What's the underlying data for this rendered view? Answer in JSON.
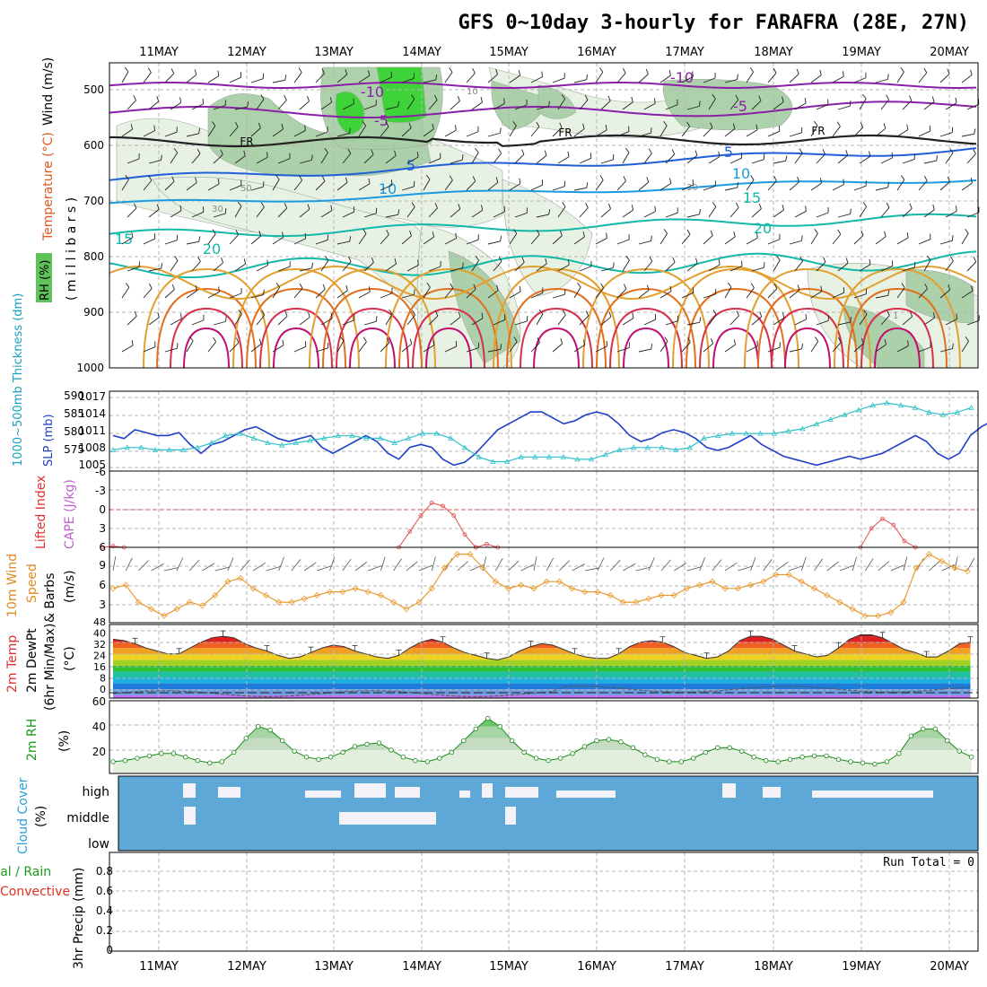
{
  "title": "GFS 0~10day 3-hourly for FARAFRA (28E, 27N)",
  "dates": [
    "11MAY",
    "12MAY",
    "13MAY",
    "14MAY",
    "15MAY",
    "16MAY",
    "17MAY",
    "18MAY",
    "19MAY",
    "20MAY"
  ],
  "colors": {
    "bg": "#ffffff",
    "grid": "#b5b5b5",
    "frame": "#000000",
    "rh_light": "#e6f2e3",
    "rh_mid": "#a9cfa6",
    "rh_dark": "#7ab078",
    "rh_bright": "#39d432",
    "temp_purple": "#8a1fa8",
    "temp_blue": "#1f5fd8",
    "temp_sky": "#1a9be0",
    "temp_teal": "#12b8a8",
    "temp_orange": "#e2a030",
    "temp_dorange": "#e07020",
    "temp_red": "#d8304a",
    "slp_line": "#1f3fc8",
    "thick_line": "#2fc0c8",
    "li_line": "#e05050",
    "cape_label": "#c060d0",
    "wind10_line": "#e89a30",
    "rh2m_line": "#1a8a1a",
    "cloud_bg": "#5ea8d8",
    "cloud_cover": "#f4f2f8",
    "precip_rain": "#1a9a1a",
    "precip_conv": "#e03020"
  },
  "panels": {
    "upper": {
      "ylabel_rh": "RH (%)",
      "ylabel_temp": "Temperature (°C)",
      "ylabel_wind": "Wind (m/s)",
      "ylabel_mb": "( m i l l i b a r s )",
      "yticks": [
        "500",
        "600",
        "700",
        "800",
        "900",
        "1000"
      ],
      "contour_labels": {
        "t_minus10": "-10",
        "t_minus5": "-5",
        "t_fr": "FR",
        "t_5": "5",
        "t_10": "10",
        "t_15": "15",
        "t_20": "20"
      },
      "rh_labels": [
        "30",
        "50",
        "30",
        "10",
        "1"
      ]
    },
    "slp": {
      "ylabel_left": "1000~500mb Thickness (dm)",
      "ylabel_right": "SLP (mb)",
      "yticks_left": [
        "590",
        "585",
        "580",
        "575"
      ],
      "yticks_right": [
        "1017",
        "1014",
        "1011",
        "1008",
        "1005"
      ]
    },
    "li": {
      "ylabel_left": "Lifted Index",
      "ylabel_right": "CAPE (J/kg)",
      "yticks": [
        "-6",
        "-3",
        "0",
        "3",
        "6"
      ]
    },
    "wind10": {
      "ylabel_1": "10m Wind",
      "ylabel_2": "Speed",
      "ylabel_3": "& Barbs",
      "ylabel_units": "(m/s)",
      "yticks": [
        "9",
        "6",
        "3"
      ]
    },
    "temp2m": {
      "ylabel_1": "2m Temp",
      "ylabel_2": "2m DewPt",
      "ylabel_3": "(6hr Min/Max)",
      "ylabel_units": "(°C)",
      "yticks": [
        "48",
        "40",
        "32",
        "24",
        "16",
        "8",
        "0"
      ]
    },
    "rh2m": {
      "ylabel_1": "2m RH",
      "ylabel_units": "(%)",
      "yticks": [
        "60",
        "40",
        "20"
      ]
    },
    "cloud": {
      "ylabel_1": "Cloud Cover",
      "ylabel_units": "(%)",
      "levels": [
        "high",
        "middle",
        "low"
      ]
    },
    "precip": {
      "ylabel_1": "Total / Rain",
      "ylabel_2": "Convective",
      "ylabel_3": "3hr Precip (mm)",
      "yticks": [
        "0.8",
        "0.6",
        "0.4",
        "0.2",
        "0"
      ],
      "run_total": "Run Total = 0"
    }
  },
  "chart_data": [
    {
      "type": "line",
      "title": "SLP (mb)",
      "x_start": "10MAY 12Z",
      "x_step_hours": 3,
      "ylim": [
        1004,
        1017.5
      ],
      "values": [
        1010,
        1009.5,
        1011,
        1010.5,
        1010,
        1010,
        1010.5,
        1008.5,
        1007,
        1008.5,
        1009,
        1010,
        1011,
        1011.5,
        1010.5,
        1009.5,
        1009,
        1009.5,
        1010,
        1008,
        1007,
        1008,
        1009,
        1010,
        1009,
        1007,
        1006,
        1008,
        1008.5,
        1008,
        1006,
        1005,
        1005.5,
        1007,
        1009,
        1011,
        1012,
        1013,
        1014,
        1014,
        1013,
        1012,
        1012.5,
        1013.5,
        1014,
        1013.5,
        1012,
        1010,
        1009,
        1009.5,
        1010.5,
        1011,
        1010.5,
        1009.5,
        1008,
        1007.5,
        1008,
        1009,
        1010,
        1008.5,
        1007.5,
        1006.5,
        1006,
        1005.5,
        1005,
        1005.5,
        1006,
        1006.5,
        1006,
        1006.5,
        1007,
        1008,
        1009,
        1010,
        1009,
        1007,
        1006,
        1007,
        1010,
        1011.5,
        1012.5,
        1013,
        1013.5,
        1012.5,
        1012,
        1012.5,
        1014,
        1014.5,
        1013.5,
        1012.5,
        1011.5,
        1012,
        1013,
        1014,
        1015,
        1015.5,
        1016,
        1014.5,
        1014,
        1015.5,
        1016.5,
        1016,
        1015,
        1014,
        1014,
        1015,
        1016,
        1016.5,
        1015.5,
        1014.5,
        1015,
        1016.5,
        1017
      ]
    },
    {
      "type": "line",
      "title": "1000~500mb Thickness (dm)",
      "x_start": "10MAY 12Z",
      "x_step_hours": 3,
      "ylim": [
        573,
        590
      ],
      "values": [
        577.5,
        578,
        578,
        577.5,
        577.5,
        577.5,
        578,
        579,
        580.5,
        581,
        580,
        579,
        578.5,
        579,
        579.5,
        580,
        580.5,
        580.5,
        580,
        580,
        579,
        580,
        581,
        581,
        580,
        578,
        576,
        575,
        575,
        576,
        576,
        576,
        576,
        575.5,
        575.5,
        576.5,
        577.5,
        578,
        578,
        578,
        577.5,
        578,
        580,
        580.5,
        581,
        581,
        581,
        581,
        581.5,
        582,
        583,
        584,
        585,
        586,
        587,
        587.5,
        587,
        586.5,
        585.5,
        585,
        585.5,
        586.5,
        587.5,
        586.5,
        585,
        584,
        583.5,
        583,
        582.5,
        582,
        581.5,
        581.5,
        581,
        580.5,
        579.5,
        578.5,
        578,
        578,
        578,
        578.5,
        579,
        579.5,
        579,
        578.5,
        578,
        577.5,
        577,
        577.5,
        577,
        576.5
      ]
    },
    {
      "type": "line",
      "title": "Lifted Index",
      "x_start": "10MAY 12Z",
      "x_step_hours": 3,
      "ylim": [
        6,
        -6
      ],
      "values": [
        5.8,
        6,
        6,
        6,
        6,
        6,
        6,
        6,
        6,
        6,
        6,
        6,
        6,
        6,
        6,
        6,
        6,
        6,
        6,
        6,
        6,
        6,
        6,
        6,
        6,
        6,
        6,
        3.5,
        1,
        -1,
        -0.5,
        1,
        4,
        6,
        5.5,
        6,
        6,
        6,
        6,
        6,
        6,
        6,
        6,
        6,
        6,
        6,
        6,
        6,
        6,
        6,
        6,
        6,
        6,
        6,
        6,
        6,
        6,
        6,
        6,
        6,
        6,
        6,
        6,
        6,
        6,
        6,
        6,
        6,
        6,
        3,
        1.5,
        2.5,
        5,
        6,
        6,
        6,
        2.5,
        1.5,
        3,
        1.5,
        4,
        6,
        6,
        6,
        6,
        3,
        3.5,
        6,
        6,
        6,
        6,
        6,
        6,
        6,
        6,
        6,
        6,
        6,
        6,
        6,
        6,
        6,
        6,
        6,
        6,
        6,
        6,
        6,
        6,
        6,
        6,
        6,
        6,
        6,
        6
      ]
    },
    {
      "type": "line",
      "title": "10m Wind Speed (m/s)",
      "x_start": "10MAY 12Z",
      "x_step_hours": 3,
      "ylim": [
        0,
        11
      ],
      "values": [
        5,
        5.5,
        3,
        2,
        1,
        2,
        3,
        2.5,
        4,
        6,
        6.5,
        5,
        4,
        3,
        3,
        3.5,
        4,
        4.5,
        4.5,
        5,
        4.5,
        4,
        3,
        2,
        3,
        5,
        8,
        10,
        10,
        8,
        6,
        5,
        5.5,
        5,
        6,
        6,
        5,
        4.5,
        4.5,
        4,
        3,
        3,
        3.5,
        4,
        4,
        5,
        5.5,
        6,
        5,
        5,
        5.5,
        6,
        7,
        7,
        6,
        5,
        4,
        3,
        2,
        1,
        1,
        1.5,
        3,
        8,
        10,
        9,
        8,
        7.5,
        8,
        9,
        10,
        10,
        9,
        8,
        8,
        7,
        6,
        6,
        8,
        9,
        9,
        8,
        7.5,
        8,
        6.5,
        5.5,
        6,
        7,
        8,
        7,
        7,
        6.5,
        7,
        8
      ]
    },
    {
      "type": "area",
      "title": "2m Temp (°C)",
      "x_start": "10MAY 12Z",
      "x_step_hours": 3,
      "ylim": [
        -2,
        48
      ],
      "values": [
        38,
        37,
        35,
        32,
        30,
        28,
        28,
        32,
        36,
        39,
        40,
        39,
        35,
        32,
        30,
        27,
        25,
        26,
        29,
        32,
        34,
        33,
        30,
        28,
        26,
        25,
        27,
        32,
        36,
        38,
        36,
        32,
        29,
        27,
        25,
        24,
        26,
        30,
        33,
        35,
        34,
        31,
        28,
        26,
        25,
        25,
        28,
        33,
        36,
        37,
        36,
        33,
        29,
        27,
        25,
        26,
        30,
        37,
        40,
        40,
        38,
        34,
        30,
        28,
        26,
        27,
        32,
        38,
        41,
        41,
        39,
        35,
        31,
        29,
        26,
        26,
        30,
        35,
        36,
        35,
        33,
        30,
        28,
        26,
        24,
        24,
        27,
        32,
        35,
        35,
        33,
        30,
        27,
        25,
        22,
        21,
        22
      ]
    },
    {
      "type": "area",
      "title": "2m RH (%)",
      "x_start": "10MAY 12Z",
      "x_step_hours": 3,
      "ylim": [
        0,
        62
      ],
      "values": [
        10,
        11,
        13,
        15,
        17,
        17,
        14,
        11,
        9,
        10,
        18,
        30,
        40,
        37,
        28,
        19,
        14,
        12,
        14,
        18,
        23,
        25,
        26,
        20,
        14,
        11,
        10,
        13,
        18,
        28,
        38,
        47,
        40,
        28,
        18,
        13,
        11,
        13,
        17,
        23,
        28,
        29,
        27,
        22,
        16,
        12,
        10,
        10,
        13,
        18,
        22,
        22,
        19,
        14,
        11,
        10,
        12,
        14,
        15,
        15,
        12,
        10,
        9,
        8,
        10,
        17,
        32,
        38,
        38,
        28,
        19,
        14,
        12,
        14,
        20,
        28,
        38,
        43,
        36,
        24,
        15,
        11,
        12,
        20,
        40,
        55,
        48,
        36
      ]
    },
    {
      "type": "bar",
      "title": "3hr Precip (mm)",
      "ylim": [
        0,
        1
      ],
      "categories": [
        "11MAY",
        "12MAY",
        "13MAY",
        "14MAY",
        "15MAY",
        "16MAY",
        "17MAY",
        "18MAY",
        "19MAY",
        "20MAY"
      ],
      "values": [
        0,
        0,
        0,
        0,
        0,
        0,
        0,
        0,
        0,
        0
      ]
    }
  ]
}
